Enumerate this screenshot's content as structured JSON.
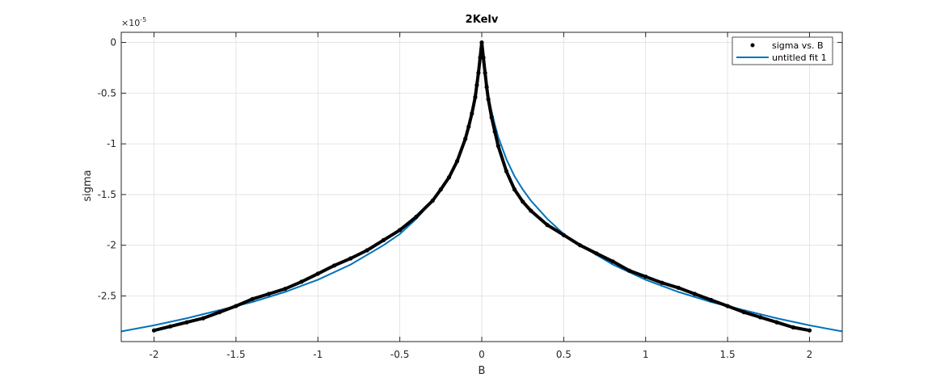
{
  "chart_data": {
    "type": "scatter",
    "title": "2Kelv",
    "xlabel": "B",
    "ylabel": "sigma",
    "y_multiplier": {
      "base": "×10",
      "exponent": "-5"
    },
    "xlim": [
      -2.2,
      2.2
    ],
    "ylim": [
      -2.95,
      0.1
    ],
    "x_ticks": [
      -2,
      -1.5,
      -1,
      -0.5,
      0,
      0.5,
      1,
      1.5,
      2
    ],
    "x_tick_labels": [
      "-2",
      "-1.5",
      "-1",
      "-0.5",
      "0",
      "0.5",
      "1",
      "1.5",
      "2"
    ],
    "y_ticks": [
      0,
      -0.5,
      -1,
      -1.5,
      -2,
      -2.5
    ],
    "y_tick_labels": [
      "0",
      "-0.5",
      "-1",
      "-1.5",
      "-2",
      "-2.5"
    ],
    "grid": true,
    "legend_position": "top-right",
    "series": [
      {
        "name": "sigma vs. B",
        "kind": "markers",
        "color": "#000000",
        "x": [
          -2.0,
          -1.9,
          -1.8,
          -1.7,
          -1.6,
          -1.5,
          -1.4,
          -1.3,
          -1.2,
          -1.1,
          -1.0,
          -0.9,
          -0.8,
          -0.7,
          -0.6,
          -0.5,
          -0.4,
          -0.3,
          -0.25,
          -0.2,
          -0.15,
          -0.1,
          -0.08,
          -0.06,
          -0.04,
          -0.03,
          -0.02,
          -0.01,
          0.0,
          0.01,
          0.02,
          0.03,
          0.04,
          0.06,
          0.08,
          0.1,
          0.15,
          0.2,
          0.25,
          0.3,
          0.4,
          0.5,
          0.6,
          0.7,
          0.8,
          0.9,
          1.0,
          1.1,
          1.2,
          1.3,
          1.4,
          1.5,
          1.6,
          1.7,
          1.8,
          1.9,
          2.0
        ],
        "y": [
          -2.84,
          -2.8,
          -2.76,
          -2.72,
          -2.66,
          -2.6,
          -2.53,
          -2.48,
          -2.43,
          -2.36,
          -2.28,
          -2.2,
          -2.13,
          -2.05,
          -1.95,
          -1.85,
          -1.72,
          -1.56,
          -1.45,
          -1.33,
          -1.17,
          -0.95,
          -0.83,
          -0.7,
          -0.54,
          -0.42,
          -0.3,
          -0.15,
          0.0,
          -0.15,
          -0.3,
          -0.44,
          -0.56,
          -0.74,
          -0.88,
          -1.02,
          -1.27,
          -1.45,
          -1.57,
          -1.66,
          -1.8,
          -1.9,
          -2.0,
          -2.08,
          -2.16,
          -2.25,
          -2.31,
          -2.37,
          -2.42,
          -2.48,
          -2.54,
          -2.6,
          -2.66,
          -2.71,
          -2.76,
          -2.81,
          -2.84
        ]
      },
      {
        "name": "untitled fit 1",
        "kind": "line",
        "color": "#0072BD",
        "x": [
          -2.2,
          -2.0,
          -1.8,
          -1.6,
          -1.4,
          -1.2,
          -1.0,
          -0.8,
          -0.6,
          -0.5,
          -0.4,
          -0.3,
          -0.25,
          -0.2,
          -0.15,
          -0.1,
          -0.08,
          -0.06,
          -0.04,
          -0.03,
          -0.02,
          -0.01,
          0.0,
          0.01,
          0.02,
          0.03,
          0.04,
          0.06,
          0.08,
          0.1,
          0.15,
          0.2,
          0.25,
          0.3,
          0.4,
          0.5,
          0.6,
          0.8,
          1.0,
          1.2,
          1.4,
          1.6,
          1.8,
          2.0,
          2.2
        ],
        "y": [
          -2.85,
          -2.79,
          -2.72,
          -2.64,
          -2.56,
          -2.46,
          -2.34,
          -2.19,
          -2.0,
          -1.89,
          -1.74,
          -1.56,
          -1.45,
          -1.32,
          -1.15,
          -0.93,
          -0.81,
          -0.68,
          -0.52,
          -0.41,
          -0.29,
          -0.14,
          0.0,
          -0.14,
          -0.29,
          -0.41,
          -0.52,
          -0.68,
          -0.81,
          -0.93,
          -1.15,
          -1.32,
          -1.45,
          -1.56,
          -1.74,
          -1.89,
          -2.0,
          -2.19,
          -2.34,
          -2.46,
          -2.56,
          -2.64,
          -2.72,
          -2.79,
          -2.85
        ]
      }
    ]
  }
}
